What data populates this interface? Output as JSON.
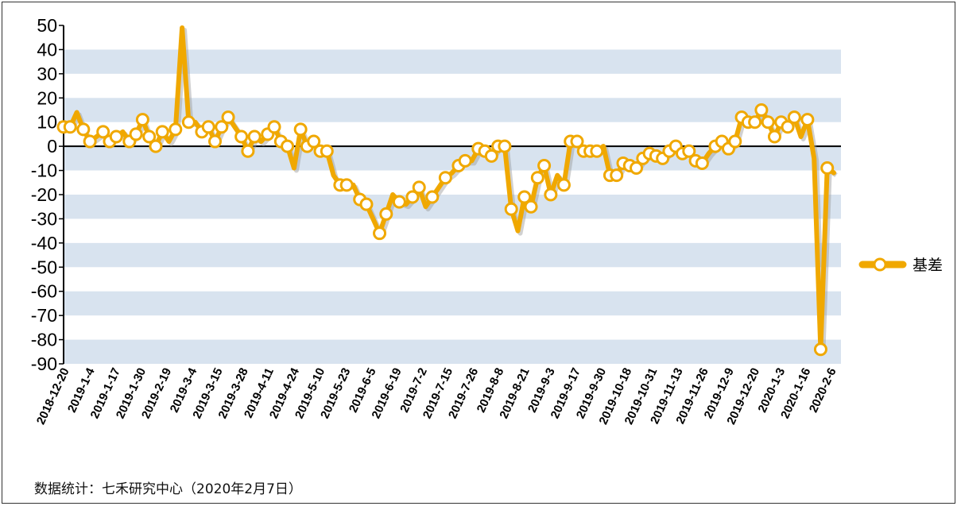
{
  "source_note": "数据统计：七禾研究中心（2020年2月7日）",
  "colors": {
    "series": "#F0A800",
    "band": "#D8E3EF",
    "marker_fill": "#FFFFFF",
    "axis": "#000000"
  },
  "chart_data": {
    "type": "line",
    "title": "",
    "xlabel": "",
    "ylabel": "",
    "ylim": [
      -90,
      50
    ],
    "yticks": [
      50,
      40,
      30,
      20,
      10,
      0,
      -10,
      -20,
      -30,
      -40,
      -50,
      -60,
      -70,
      -80,
      -90
    ],
    "x_tick_labels": [
      "2018-12-20",
      "2019-1-4",
      "2019-1-17",
      "2019-1-30",
      "2019-2-19",
      "2019-3-4",
      "2019-3-15",
      "2019-3-28",
      "2019-4-11",
      "2019-4-24",
      "2019-5-10",
      "2019-5-23",
      "2019-6-5",
      "2019-6-19",
      "2019-7-2",
      "2019-7-15",
      "2019-7-26",
      "2019-8-8",
      "2019-8-21",
      "2019-9-3",
      "2019-9-17",
      "2019-9-30",
      "2019-10-18",
      "2019-10-31",
      "2019-11-13",
      "2019-11-26",
      "2019-12-9",
      "2019-12-20",
      "2020-1-3",
      "2020-1-16",
      "2020-2-6"
    ],
    "grid": "alternating horizontal bands",
    "legend_position": "right",
    "series": [
      {
        "name": "基差",
        "values": [
          8,
          8,
          14,
          7,
          2,
          4,
          6,
          2,
          4,
          6,
          2,
          5,
          11,
          4,
          0,
          6,
          2,
          7,
          49,
          10,
          10,
          6,
          8,
          2,
          8,
          12,
          8,
          4,
          -2,
          4,
          2,
          5,
          8,
          2,
          0,
          -9,
          7,
          0,
          2,
          -2,
          -2,
          -12,
          -16,
          -16,
          -16,
          -22,
          -24,
          -30,
          -36,
          -28,
          -20,
          -23,
          -24,
          -21,
          -17,
          -25,
          -21,
          -17,
          -13,
          -11,
          -8,
          -6,
          -6,
          -1,
          -2,
          -4,
          0,
          0,
          -26,
          -35,
          -21,
          -25,
          -13,
          -8,
          -20,
          -12,
          -16,
          2,
          2,
          -2,
          -2,
          -2,
          0,
          -12,
          -12,
          -7,
          -8,
          -9,
          -5,
          -3,
          -4,
          -5,
          -2,
          0,
          -3,
          -2,
          -6,
          -7,
          -3,
          0,
          2,
          -1,
          2,
          12,
          10,
          10,
          15,
          10,
          4,
          10,
          8,
          12,
          4,
          11,
          -5,
          -84,
          -9,
          -11
        ],
        "marker_indices": [
          0,
          1,
          3,
          4,
          6,
          7,
          8,
          10,
          11,
          12,
          13,
          14,
          15,
          17,
          19,
          21,
          22,
          23,
          24,
          25,
          27,
          28,
          29,
          31,
          32,
          33,
          34,
          36,
          37,
          38,
          39,
          40,
          42,
          43,
          45,
          46,
          48,
          49,
          51,
          53,
          54,
          56,
          58,
          60,
          61,
          63,
          64,
          65,
          66,
          67,
          68,
          70,
          71,
          72,
          73,
          74,
          76,
          77,
          78,
          79,
          80,
          81,
          83,
          84,
          85,
          86,
          87,
          88,
          89,
          90,
          91,
          92,
          93,
          94,
          95,
          96,
          97,
          99,
          100,
          101,
          102,
          103,
          104,
          105,
          106,
          107,
          108,
          109,
          110,
          111,
          113,
          115,
          116
        ]
      }
    ]
  }
}
